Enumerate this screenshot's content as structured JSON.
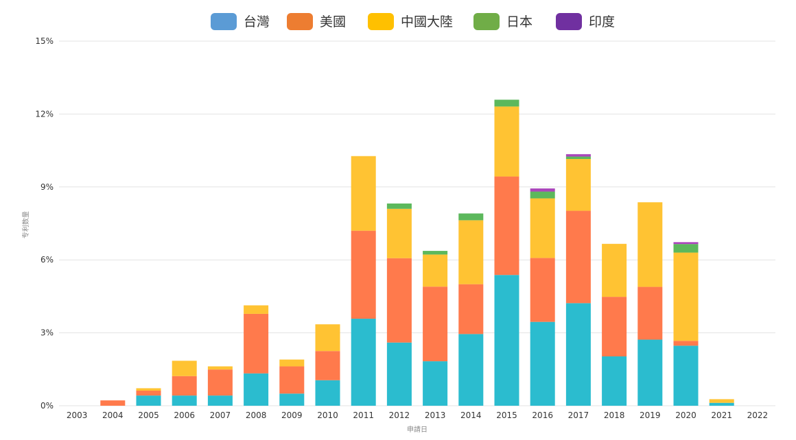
{
  "chart_data": {
    "type": "bar",
    "stacked": true,
    "xlabel": "申請日",
    "ylabel": "专利数量",
    "ylim": [
      0,
      15
    ],
    "yticks": [
      0,
      3,
      6,
      9,
      12,
      15
    ],
    "ytick_suffix": "%",
    "grid": true,
    "legend_position": "top-center",
    "categories": [
      "2003",
      "2004",
      "2005",
      "2006",
      "2007",
      "2008",
      "2009",
      "2010",
      "2011",
      "2012",
      "2013",
      "2014",
      "2015",
      "2016",
      "2017",
      "2018",
      "2019",
      "2020",
      "2021",
      "2022"
    ],
    "series": [
      {
        "name": "台灣",
        "legend_color": "#5b9bd5",
        "bar_color": "#2bbccf",
        "values": [
          0,
          0,
          0.42,
          0.42,
          0.42,
          1.33,
          0.5,
          1.05,
          3.58,
          2.6,
          1.83,
          2.95,
          5.38,
          3.45,
          4.22,
          2.03,
          2.72,
          2.47,
          0.12,
          0
        ]
      },
      {
        "name": "美國",
        "legend_color": "#ed7d31",
        "bar_color": "#ff7a4c",
        "values": [
          0,
          0.22,
          0.2,
          0.8,
          1.07,
          2.45,
          1.12,
          1.2,
          3.62,
          3.47,
          3.07,
          2.05,
          4.05,
          2.63,
          3.8,
          2.45,
          2.17,
          0.2,
          0,
          0
        ]
      },
      {
        "name": "中國大陸",
        "legend_color": "#ffc000",
        "bar_color": "#ffc333",
        "values": [
          0,
          0,
          0.1,
          0.63,
          0.13,
          0.35,
          0.28,
          1.1,
          3.07,
          2.03,
          1.32,
          2.63,
          2.88,
          2.45,
          2.13,
          2.18,
          3.48,
          3.63,
          0.15,
          0
        ]
      },
      {
        "name": "日本",
        "legend_color": "#70ad47",
        "bar_color": "#5cb85c",
        "values": [
          0,
          0,
          0,
          0,
          0,
          0,
          0,
          0,
          0,
          0.22,
          0.15,
          0.28,
          0.28,
          0.28,
          0.1,
          0,
          0,
          0.35,
          0,
          0
        ]
      },
      {
        "name": "印度",
        "legend_color": "#7030a0",
        "bar_color": "#ab47bc",
        "values": [
          0,
          0,
          0,
          0,
          0,
          0,
          0,
          0,
          0,
          0,
          0,
          0,
          0,
          0.13,
          0.1,
          0,
          0,
          0.08,
          0,
          0
        ]
      }
    ]
  }
}
